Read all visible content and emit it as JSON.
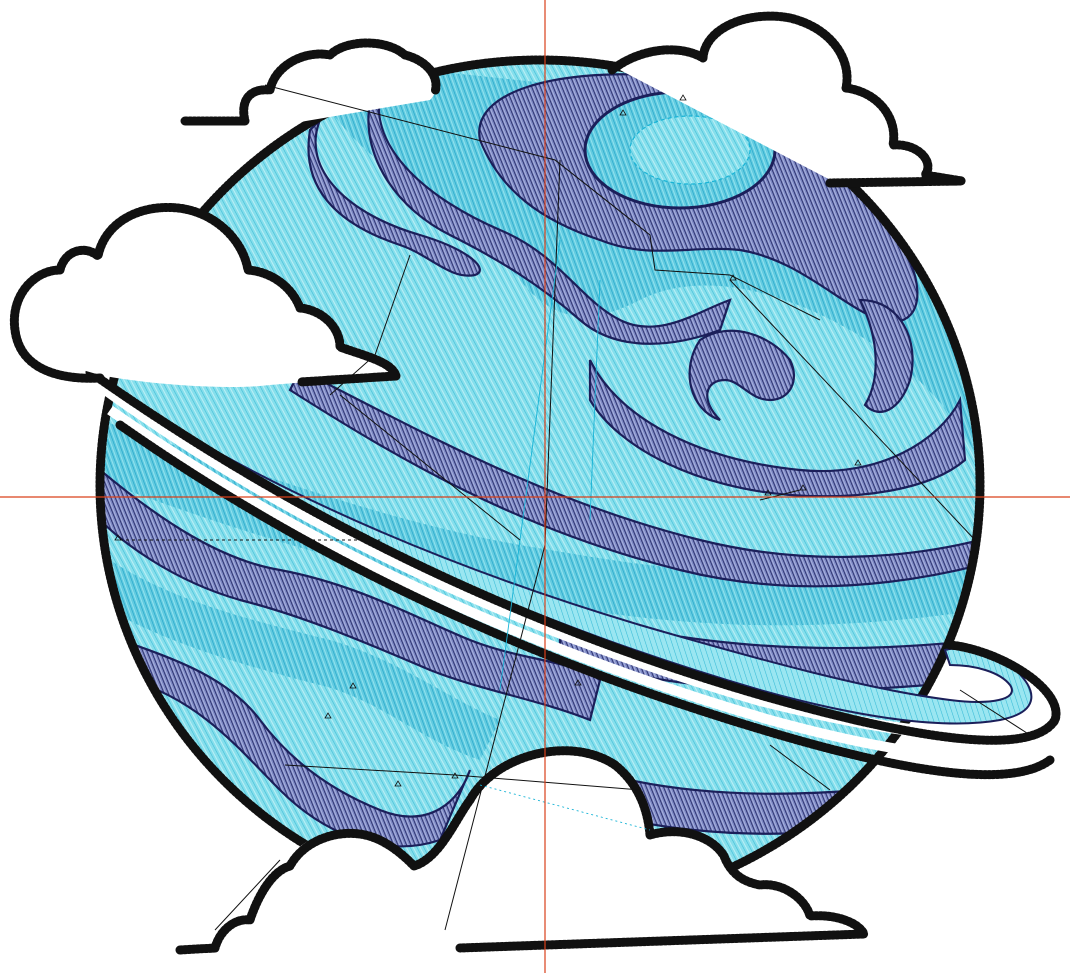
{
  "canvas": {
    "background": "#ffffff"
  },
  "crosshair": {
    "color": "#d9401a"
  },
  "colors": {
    "planet_light": "#7fdcea",
    "planet_mid": "#5ec7df",
    "band_dark": "#6a78b8",
    "band_navy": "#1b1f5a",
    "ring_light": "#8fe3ef",
    "outline": "#111111",
    "cloud": "#ffffff",
    "travel_cyan": "#19b4d6"
  },
  "design": {
    "subject": "planet-icon",
    "elements": [
      "planet-icon",
      "ring-icon",
      "cloud-icon",
      "cloud-icon",
      "cloud-icon",
      "cloud-icon"
    ]
  }
}
